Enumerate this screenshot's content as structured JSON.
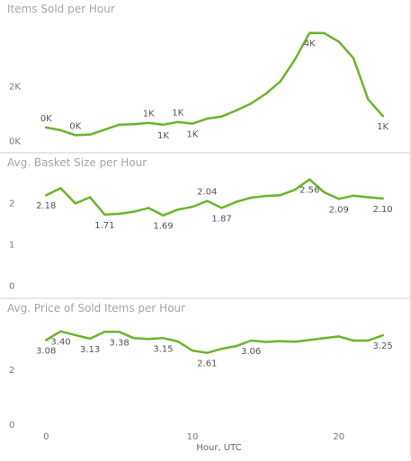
{
  "colors": {
    "line": "#6bb42b",
    "tick": "#777777",
    "label": "#555555",
    "title": "#a6a6a6"
  },
  "x_axis": {
    "title": "Hour, UTC",
    "ticks": [
      0,
      10,
      20
    ],
    "range": [
      -1,
      24.5
    ]
  },
  "chart_data": [
    {
      "type": "line",
      "title": "Items Sold per Hour",
      "x": [
        0,
        1,
        2,
        3,
        4,
        5,
        6,
        7,
        8,
        9,
        10,
        11,
        12,
        13,
        14,
        15,
        16,
        17,
        18,
        19,
        20,
        21,
        22,
        23
      ],
      "values": [
        480,
        380,
        200,
        220,
        400,
        580,
        600,
        650,
        580,
        680,
        620,
        800,
        880,
        1100,
        1350,
        1700,
        2150,
        2950,
        3920,
        3910,
        3600,
        3000,
        1500,
        900
      ],
      "yticks": [
        0,
        2000
      ],
      "ytick_labels": [
        "0K",
        "2K"
      ],
      "ylim": [
        -80,
        4200
      ],
      "data_labels": [
        {
          "x": 0,
          "text": "0K",
          "pos": "above"
        },
        {
          "x": 2,
          "text": "0K",
          "pos": "above"
        },
        {
          "x": 7,
          "text": "1K",
          "pos": "above"
        },
        {
          "x": 8,
          "text": "1K",
          "pos": "below"
        },
        {
          "x": 9,
          "text": "1K",
          "pos": "above"
        },
        {
          "x": 10,
          "text": "1K",
          "pos": "below"
        },
        {
          "x": 18,
          "text": "4K",
          "pos": "below"
        },
        {
          "x": 23,
          "text": "1K",
          "pos": "below"
        }
      ]
    },
    {
      "type": "line",
      "title": "Avg. Basket Size per Hour",
      "x": [
        0,
        1,
        2,
        3,
        4,
        5,
        6,
        7,
        8,
        9,
        10,
        11,
        12,
        13,
        14,
        15,
        16,
        17,
        18,
        19,
        20,
        21,
        22,
        23
      ],
      "values": [
        2.18,
        2.35,
        1.98,
        2.13,
        1.71,
        1.73,
        1.78,
        1.87,
        1.69,
        1.83,
        1.9,
        2.04,
        1.87,
        2.02,
        2.12,
        2.16,
        2.18,
        2.31,
        2.56,
        2.25,
        2.09,
        2.17,
        2.13,
        2.1
      ],
      "yticks": [
        0,
        1,
        2
      ],
      "ytick_labels": [
        "0",
        "1",
        "2"
      ],
      "ylim": [
        -0.1,
        2.75
      ],
      "data_labels": [
        {
          "x": 0,
          "text": "2.18",
          "pos": "below"
        },
        {
          "x": 4,
          "text": "1.71",
          "pos": "below"
        },
        {
          "x": 8,
          "text": "1.69",
          "pos": "below"
        },
        {
          "x": 11,
          "text": "2.04",
          "pos": "above"
        },
        {
          "x": 12,
          "text": "1.87",
          "pos": "below"
        },
        {
          "x": 18,
          "text": "2.56",
          "pos": "below"
        },
        {
          "x": 20,
          "text": "2.09",
          "pos": "below"
        },
        {
          "x": 23,
          "text": "2.10",
          "pos": "below"
        }
      ]
    },
    {
      "type": "line",
      "title": "Avg. Price of Sold Items per Hour",
      "x": [
        0,
        1,
        2,
        3,
        4,
        5,
        6,
        7,
        8,
        9,
        10,
        11,
        12,
        13,
        14,
        15,
        16,
        17,
        18,
        19,
        20,
        21,
        22,
        23
      ],
      "values": [
        3.08,
        3.4,
        3.26,
        3.13,
        3.38,
        3.38,
        3.15,
        3.12,
        3.15,
        3.03,
        2.69,
        2.61,
        2.76,
        2.86,
        3.06,
        3.01,
        3.04,
        3.02,
        3.08,
        3.15,
        3.21,
        3.06,
        3.06,
        3.25
      ],
      "yticks": [
        0,
        2
      ],
      "ytick_labels": [
        "0",
        "2"
      ],
      "ylim": [
        -0.1,
        3.85
      ],
      "data_labels": [
        {
          "x": 0,
          "text": "3.08",
          "pos": "below"
        },
        {
          "x": 1,
          "text": "3.40",
          "pos": "below"
        },
        {
          "x": 3,
          "text": "3.13",
          "pos": "below"
        },
        {
          "x": 5,
          "text": "3.38",
          "pos": "below"
        },
        {
          "x": 8,
          "text": "3.15",
          "pos": "below"
        },
        {
          "x": 11,
          "text": "2.61",
          "pos": "below"
        },
        {
          "x": 14,
          "text": "3.06",
          "pos": "below"
        },
        {
          "x": 23,
          "text": "3.25",
          "pos": "below"
        }
      ]
    }
  ]
}
